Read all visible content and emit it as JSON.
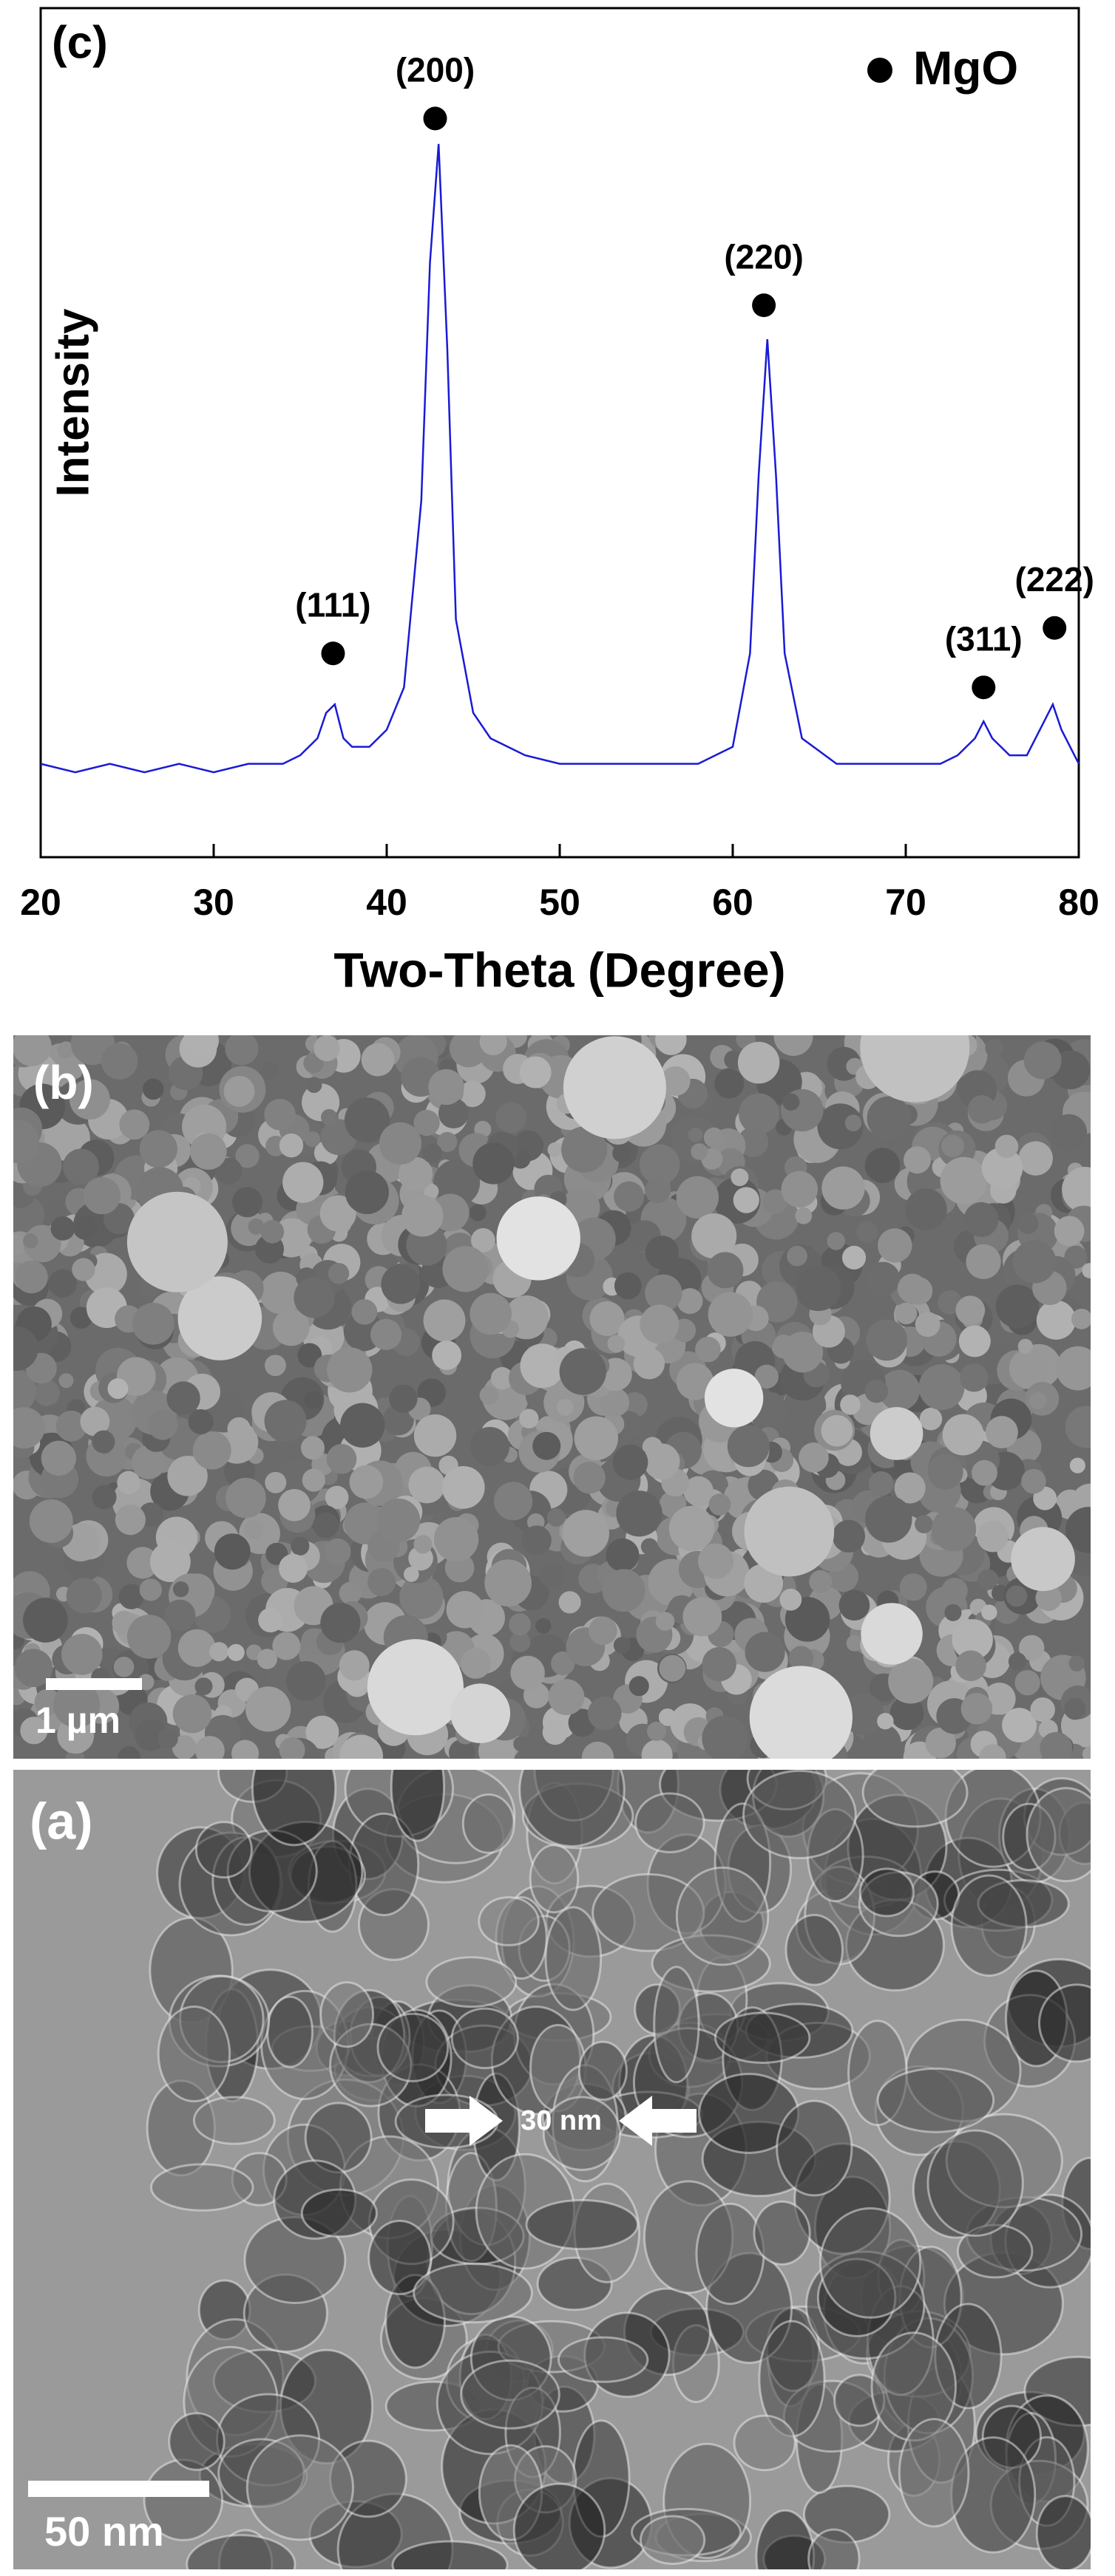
{
  "chart_data": {
    "type": "line",
    "panel_label": "(c)",
    "xlabel": "Two-Theta (Degree)",
    "ylabel": "Intensity",
    "x": [
      20,
      22,
      24,
      26,
      28,
      30,
      32,
      34,
      35,
      36,
      36.5,
      37,
      37.5,
      38,
      39,
      40,
      41,
      42,
      42.5,
      43,
      43.5,
      44,
      45,
      46,
      48,
      50,
      52,
      54,
      56,
      58,
      60,
      61,
      61.5,
      62,
      62.5,
      63,
      64,
      66,
      68,
      70,
      72,
      73,
      74,
      74.5,
      75,
      76,
      77,
      78,
      78.5,
      79,
      80
    ],
    "series": [
      {
        "color": "#1a1ad6",
        "values": [
          11,
          10,
          11,
          10,
          11,
          10,
          11,
          11,
          12,
          14,
          17,
          18,
          14,
          13,
          13,
          15,
          20,
          42,
          70,
          84,
          60,
          28,
          17,
          14,
          12,
          11,
          11,
          11,
          11,
          11,
          13,
          24,
          45,
          61,
          45,
          24,
          14,
          11,
          11,
          11,
          11,
          12,
          14,
          16,
          14,
          12,
          12,
          16,
          18,
          15,
          11
        ]
      }
    ],
    "peaks": {
      "name": "MgO",
      "color": "#000000",
      "x": [
        36.9,
        42.8,
        61.8,
        74.5,
        78.6
      ],
      "y": [
        24,
        87,
        65,
        20,
        27
      ],
      "labels": [
        "(111)",
        "(200)",
        "(220)",
        "(311)",
        "(222)"
      ]
    },
    "legend": "upper right",
    "xlim": [
      20,
      80
    ],
    "ylim": [
      0,
      100
    ],
    "xticks": [
      20,
      30,
      40,
      50,
      60,
      70,
      80
    ]
  },
  "micrographs": [
    {
      "label": "(b)",
      "scale_bar": "1 µm"
    },
    {
      "label": "(a)",
      "scale_bar": "50 nm",
      "annotation": "30 nm"
    }
  ]
}
